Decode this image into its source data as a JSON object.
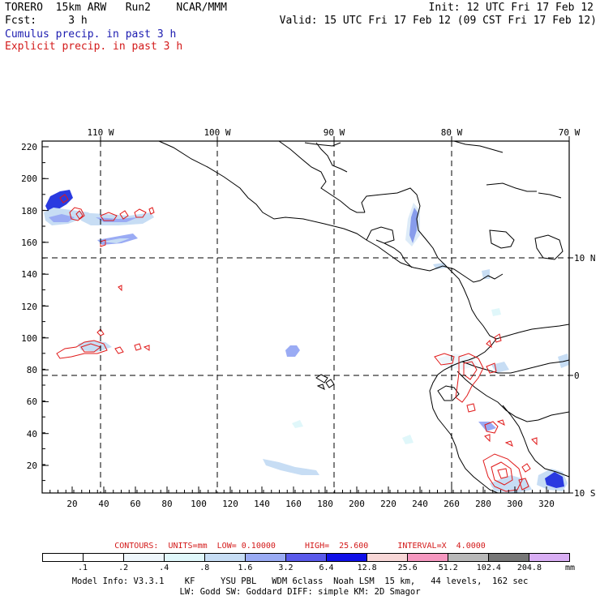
{
  "header": {
    "line1_left": "TORERO  15km ARW   Run2    NCAR/MMM",
    "line2_left": "Fcst:     3 h",
    "line1_right": "Init: 12 UTC Fri 17 Feb 12",
    "line2_right": "Valid: 15 UTC Fri 17 Feb 12 (09 CST Fri 17 Feb 12)"
  },
  "legend": {
    "cumulus": "Cumulus precip. in past 3 h",
    "explicit": "Explicit precip. in past 3 h",
    "cumulus_color": "#1c1cb0",
    "explicit_color": "#d31a1a"
  },
  "axes": {
    "top_lon_labels": [
      "110 W",
      "100 W",
      "90 W",
      "80 W",
      "70 W"
    ],
    "right_lat_labels": [
      "10 N",
      "0",
      "10 S"
    ],
    "y_ticks": [
      "220",
      "200",
      "180",
      "160",
      "140",
      "120",
      "100",
      "80",
      "60",
      "40",
      "20"
    ],
    "x_ticks": [
      "20",
      "40",
      "60",
      "80",
      "100",
      "120",
      "140",
      "160",
      "180",
      "200",
      "220",
      "240",
      "260",
      "280",
      "300",
      "320"
    ]
  },
  "contours": {
    "units_label": "CONTOURS:  UNITS=mm  LOW= 0.10000      HIGH=  25.600      INTERVAL=X  4.0000"
  },
  "colorbar": {
    "labels": [
      ".1",
      ".2",
      ".4",
      ".8",
      "1.6",
      "3.2",
      "6.4",
      "12.8",
      "25.6",
      "51.2",
      "102.4",
      "204.8"
    ],
    "colors": [
      "#ffffff",
      "#ffffff",
      "#eef6fb",
      "#e0f7fa",
      "#c7ddf4",
      "#9aabf4",
      "#5a5aeb",
      "#1010e8",
      "#f7d7d7",
      "#f598c0",
      "#b9b9b9",
      "#777777",
      "#d9aef4"
    ],
    "unit": "mm"
  },
  "model_info": {
    "line1": "Model Info: V3.3.1    KF     YSU PBL   WDM 6class  Noah LSM  15 km,   44 levels,  162 sec",
    "line2": "LW: Godd SW: Goddard DIFF: simple KM: 2D Smagor"
  }
}
